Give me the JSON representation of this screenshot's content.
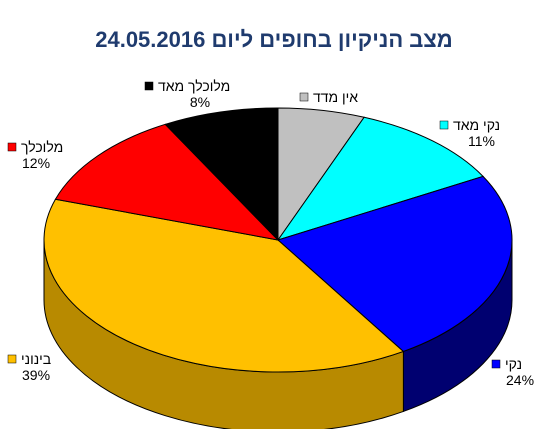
{
  "chart_data": {
    "type": "pie",
    "title": "מצב הניקיון בחופים ליום 24.05.2016",
    "series": [
      {
        "name": "אין מדד",
        "value": 6,
        "label": "",
        "color": "#c0c0c0",
        "side": "#8a8a8a"
      },
      {
        "name": "נקי מאד",
        "value": 11,
        "label": "11%",
        "color": "#00ffff",
        "side": "#00a8a8"
      },
      {
        "name": "נקי",
        "value": 24,
        "label": "24%",
        "color": "#0000ff",
        "side": "#000070"
      },
      {
        "name": "בינוני",
        "value": 39,
        "label": "39%",
        "color": "#ffc000",
        "side": "#b88a00"
      },
      {
        "name": "מלוכלך",
        "value": 12,
        "label": "12%",
        "color": "#ff0000",
        "side": "#990000"
      },
      {
        "name": "מלוכלך מאד",
        "value": 8,
        "label": "8%",
        "color": "#000000",
        "side": "#000000"
      }
    ],
    "legend": "labels next to slices",
    "view": "3d"
  }
}
